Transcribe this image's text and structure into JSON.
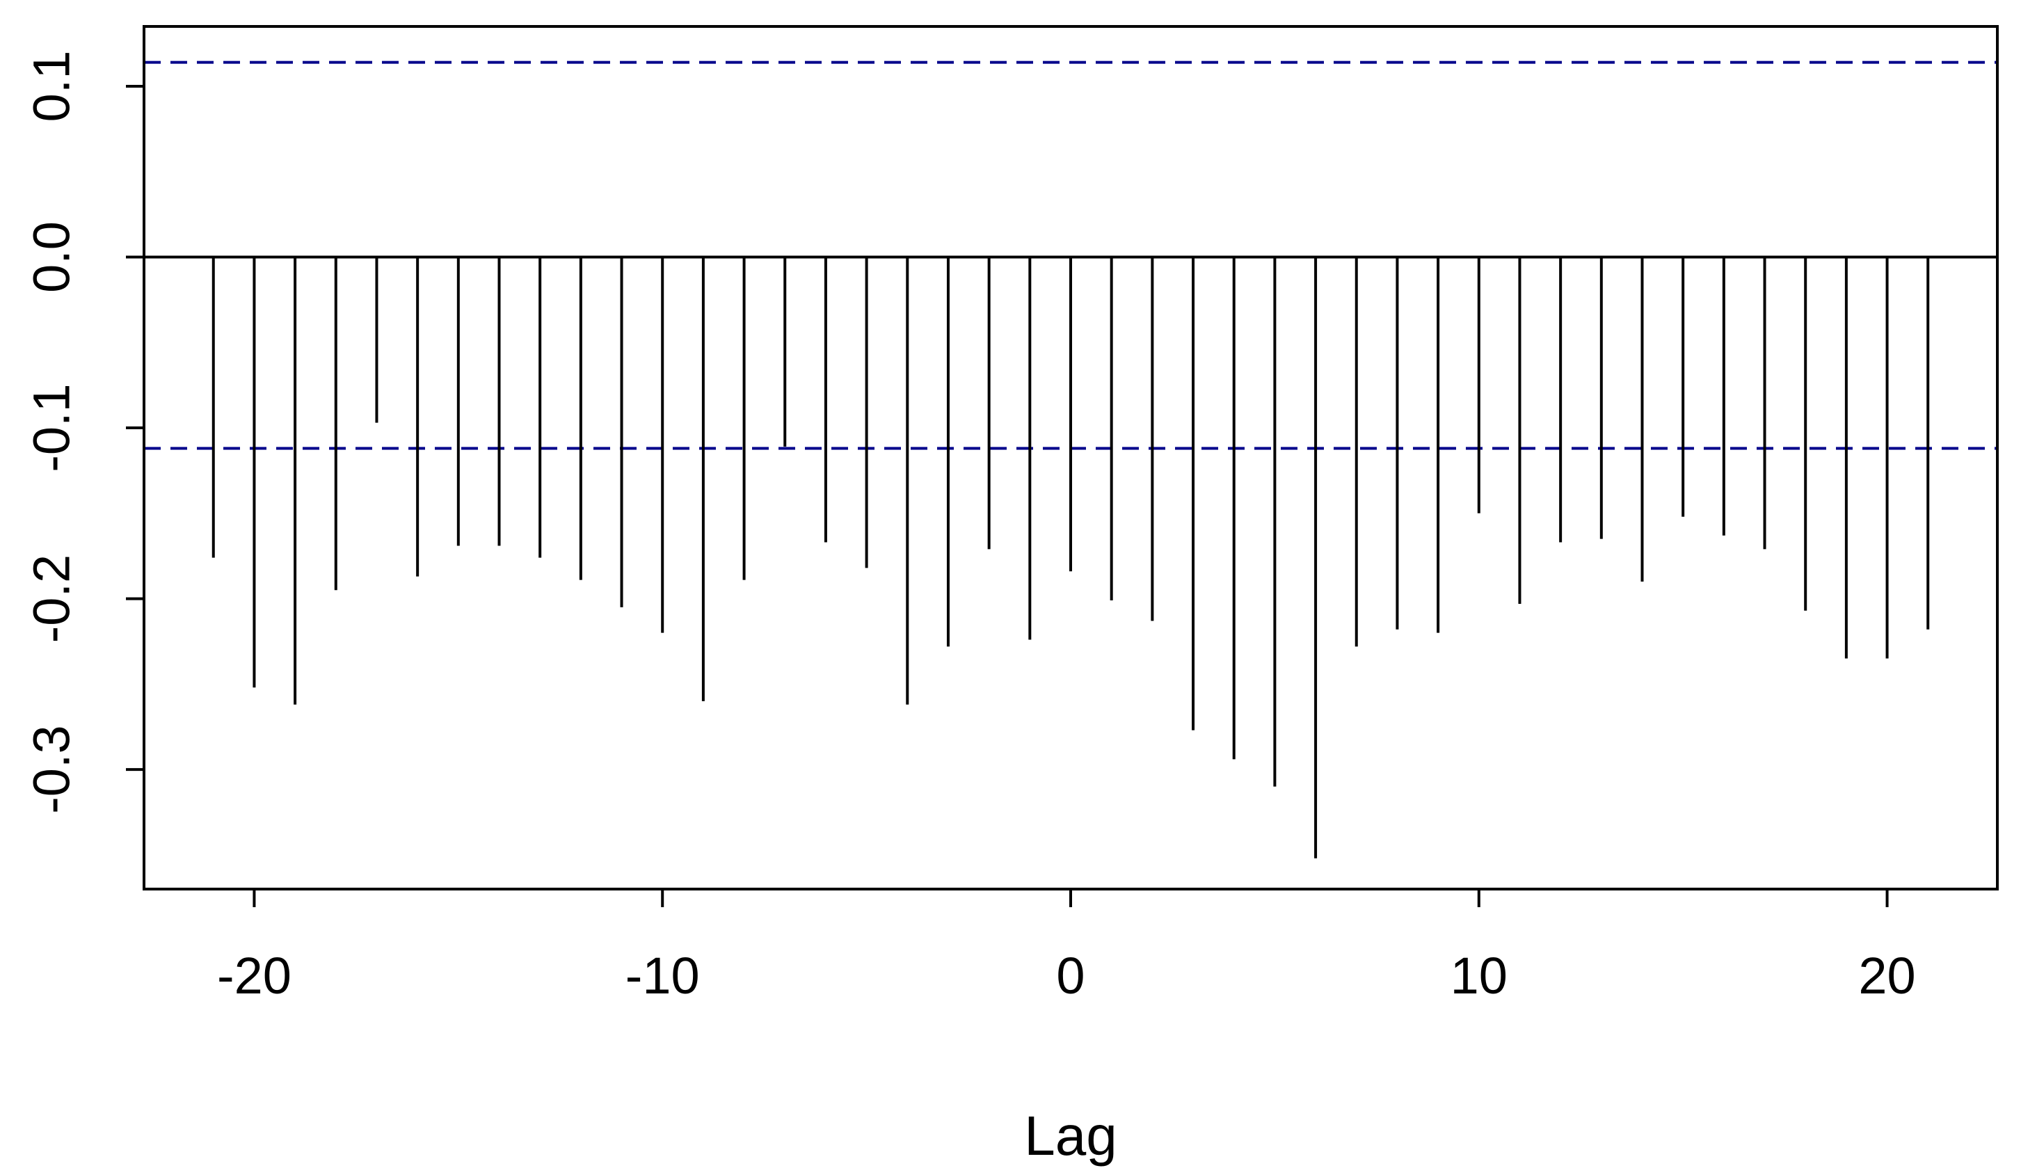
{
  "chart_data": {
    "type": "bar",
    "style": "vertical-spikes",
    "title": "",
    "xlabel": "Lag",
    "ylabel": "",
    "xlim": [
      -22.7,
      22.7
    ],
    "ylim": [
      -0.37,
      0.135
    ],
    "x_ticks": [
      -20,
      -10,
      0,
      10,
      20
    ],
    "x_tick_labels": [
      "-20",
      "-10",
      "0",
      "10",
      "20"
    ],
    "y_ticks": [
      0.1,
      0.0,
      -0.1,
      -0.2,
      -0.3
    ],
    "y_tick_labels": [
      "0.1",
      "0.0",
      "-0.1",
      "-0.2",
      "-0.3"
    ],
    "confidence_bounds": [
      0.114,
      -0.112
    ],
    "x": [
      -21,
      -20,
      -19,
      -18,
      -17,
      -16,
      -15,
      -14,
      -13,
      -12,
      -11,
      -10,
      -9,
      -8,
      -7,
      -6,
      -5,
      -4,
      -3,
      -2,
      -1,
      0,
      1,
      2,
      3,
      4,
      5,
      6,
      7,
      8,
      9,
      10,
      11,
      12,
      13,
      14,
      15,
      16,
      17,
      18,
      19,
      20,
      21
    ],
    "values": [
      -0.176,
      -0.252,
      -0.262,
      -0.195,
      -0.097,
      -0.187,
      -0.169,
      -0.169,
      -0.176,
      -0.189,
      -0.205,
      -0.22,
      -0.26,
      -0.189,
      -0.111,
      -0.167,
      -0.182,
      -0.262,
      -0.228,
      -0.171,
      -0.224,
      -0.184,
      -0.201,
      -0.213,
      -0.277,
      -0.294,
      -0.31,
      -0.352,
      -0.228,
      -0.218,
      -0.22,
      -0.15,
      -0.203,
      -0.167,
      -0.165,
      -0.19,
      -0.152,
      -0.163,
      -0.171,
      -0.207,
      -0.235,
      -0.235,
      -0.218
    ],
    "grid": false,
    "colors": {
      "spikes": "#000000",
      "bounds": "#00008b",
      "frame": "#000000"
    }
  }
}
